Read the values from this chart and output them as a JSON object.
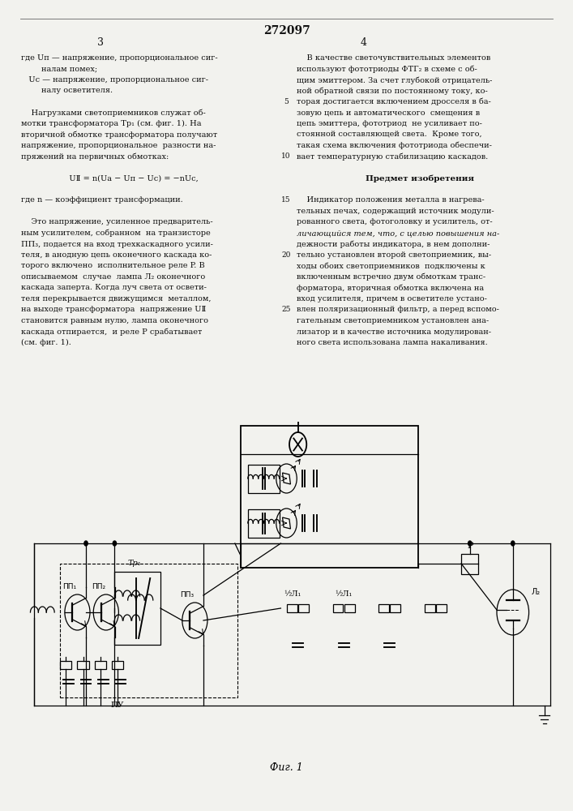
{
  "page_number": "272097",
  "col_left": "3",
  "col_right": "4",
  "bg_color": "#f2f2ee",
  "text_color": "#111111",
  "body_fs": 7.0,
  "fig_caption": "Фиг. 1",
  "left_lines": [
    "где Uп — напряжение, пропорциональное сиг-",
    "        налам помех;",
    "   Uс — напряжение, пропорциональное сиг-",
    "        налу осветителя.",
    "",
    "    Нагрузками светоприемников служат об-",
    "мотки трансформатора Тр₁ (см. фиг. 1). На",
    "вторичной обмотке трансформатора получают",
    "напряжение, пропорциональное  разности на-",
    "пряжений на первичных обмотках:",
    "",
    "   UⅡ = n(Uа − Uп − Uс) = −nUс,",
    "",
    "где n — коэффициент трансформации.",
    "",
    "    Это напряжение, усиленное предваритель-",
    "ным усилителем, собранном  на транзисторе",
    "ПП₃, подается на вход трехкаскадного усили-",
    "теля, в анодную цепь оконечного каскада ко-",
    "торого включено  исполнительное реле P. В",
    "описываемом  случае  лампа Л₂ оконечного",
    "каскада заперта. Когда луч света от освети-",
    "теля перекрывается движущимся  металлом,",
    "на выходе трансформатора  напряжение UⅡ",
    "становится равным нулю, лампа оконечного",
    "каскада отпирается,  и реле P срабатывает",
    "(см. фиг. 1)."
  ],
  "right_lines": [
    "    В качестве светочувствительных элементов",
    "используют фототриоды ФТГ₂ в схеме с об-",
    "щим эмиттером. За счет глубокой отрицатель-",
    "ной обратной связи по постоянному току, ко-",
    "торая достигается включением дросселя в ба-",
    "зовую цепь и автоматического  смещения в",
    "цепь эмиттера, фототриод  не усиливает по-",
    "стоянной составляющей света.  Кроме того,",
    "такая схема включения фототриода обеспечи-",
    "вает температурную стабилизацию каскадов.",
    "",
    "      Предмет изобретения",
    "",
    "    Индикатор положения металла в нагрева-",
    "тельных печах, содержащий источник модули-",
    "рованного света, фотоголовку и усилитель, от-",
    "личающийся тем, что, с целью повышения на-",
    "дежности работы индикатора, в нем дополни-",
    "тельно установлен второй светоприемник, вы-",
    "ходы обоих светоприемников  подключены к",
    "включенным встречно двум обмоткам транс-",
    "форматора, вторичная обмотка включена на",
    "вход усилителя, причем в осветителе устано-",
    "влен поляризационный фильтр, а перед вспомо-",
    "гательным светоприемником установлен ана-",
    "лизатор и в качестве источника модулирован-",
    "ного света использована лампа накаливания."
  ],
  "line_numbers": [
    {
      "line": 4,
      "label": "5"
    },
    {
      "line": 9,
      "label": "10"
    },
    {
      "line": 13,
      "label": "15"
    },
    {
      "line": 18,
      "label": "20"
    },
    {
      "line": 23,
      "label": "25"
    }
  ]
}
